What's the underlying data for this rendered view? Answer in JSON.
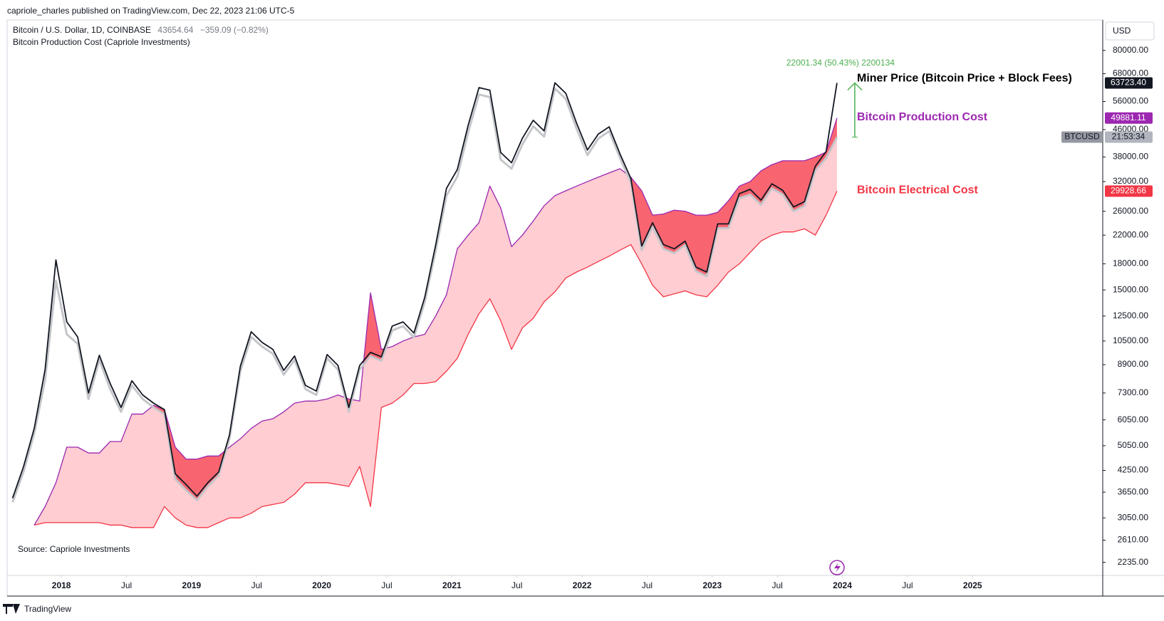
{
  "header": {
    "publisher": "capriole_charles published on TradingView.com, Dec 22, 2023 21:06 UTC-5",
    "symbol": "Bitcoin / U.S. Dollar, 1D, COINBASE",
    "price": "43654.64",
    "change": "−359.09 (−0.82%)",
    "indicator": "Bitcoin Production Cost (Capriole Investments)",
    "currency": "USD"
  },
  "footer": {
    "brand": "TradingView"
  },
  "chart_data": {
    "type": "line",
    "log_scale": true,
    "grid": false,
    "source": "Source: Capriole Investments",
    "measure": "22001.34 (50.43%) 2200134",
    "x": [
      "2017-08",
      "2017-09",
      "2017-10",
      "2017-11",
      "2017-12",
      "2018-01",
      "2018-02",
      "2018-03",
      "2018-04",
      "2018-05",
      "2018-06",
      "2018-07",
      "2018-08",
      "2018-09",
      "2018-10",
      "2018-11",
      "2018-12",
      "2019-01",
      "2019-02",
      "2019-03",
      "2019-04",
      "2019-05",
      "2019-06",
      "2019-07",
      "2019-08",
      "2019-09",
      "2019-10",
      "2019-11",
      "2019-12",
      "2020-01",
      "2020-02",
      "2020-03",
      "2020-04",
      "2020-05",
      "2020-06",
      "2020-07",
      "2020-08",
      "2020-09",
      "2020-10",
      "2020-11",
      "2020-12",
      "2021-01",
      "2021-02",
      "2021-03",
      "2021-04",
      "2021-05",
      "2021-06",
      "2021-07",
      "2021-08",
      "2021-09",
      "2021-10",
      "2021-11",
      "2021-12",
      "2022-01",
      "2022-02",
      "2022-03",
      "2022-04",
      "2022-05",
      "2022-06",
      "2022-07",
      "2022-08",
      "2022-09",
      "2022-10",
      "2022-11",
      "2022-12",
      "2023-01",
      "2023-02",
      "2023-03",
      "2023-04",
      "2023-05",
      "2023-06",
      "2023-07",
      "2023-08",
      "2023-09",
      "2023-10",
      "2023-11",
      "2023-12"
    ],
    "series": [
      {
        "name": "BTCUSD",
        "tag": "21:53:34",
        "color": "#c5c6ca",
        "values": [
          3400,
          4200,
          5500,
          8000,
          16000,
          11000,
          10300,
          7000,
          9200,
          7500,
          6400,
          7700,
          7000,
          6600,
          6300,
          4000,
          3700,
          3450,
          3800,
          4100,
          5300,
          8500,
          10800,
          10100,
          9600,
          8300,
          9200,
          7500,
          7200,
          9300,
          8600,
          6400,
          8600,
          9450,
          9140,
          11300,
          11650,
          10780,
          13800,
          19700,
          29000,
          33100,
          45100,
          58800,
          57700,
          37300,
          35000,
          41500,
          47100,
          43800,
          61300,
          57000,
          46300,
          38500,
          43200,
          45500,
          37700,
          31800,
          19800,
          23300,
          20000,
          19400,
          20500,
          17100,
          16500,
          23100,
          23100,
          28500,
          29200,
          27200,
          30500,
          29200,
          26000,
          27000,
          34500,
          37700,
          43654.64
        ]
      },
      {
        "name": "Miner Price (Bitcoin Price + Block Fees)",
        "last_label": "63723.40",
        "color": "#131722",
        "values": [
          3500,
          4350,
          5700,
          8600,
          18500,
          12000,
          10800,
          7300,
          9500,
          7800,
          6600,
          7950,
          7200,
          6800,
          6500,
          4150,
          3850,
          3550,
          3900,
          4200,
          5450,
          8800,
          11200,
          10400,
          9900,
          8550,
          9450,
          7700,
          7400,
          9550,
          8850,
          6600,
          8850,
          9700,
          9400,
          11650,
          12000,
          11100,
          14250,
          20500,
          30500,
          34800,
          47400,
          61700,
          60600,
          39200,
          36500,
          43300,
          49100,
          45600,
          63800,
          59300,
          48100,
          39900,
          44600,
          46900,
          38800,
          32700,
          20400,
          24000,
          20600,
          20000,
          21100,
          17600,
          17000,
          23800,
          23800,
          29400,
          30300,
          28100,
          31500,
          30100,
          26800,
          27800,
          35600,
          39500,
          63723.4
        ]
      },
      {
        "name": "Bitcoin Production Cost",
        "last_label": "49881.11",
        "color": "#9c27b0",
        "values": [
          null,
          null,
          2900,
          3300,
          3900,
          5000,
          5000,
          4800,
          4800,
          5200,
          5200,
          6300,
          6300,
          6700,
          6500,
          5000,
          4600,
          4600,
          4700,
          4700,
          5000,
          5300,
          5700,
          6000,
          6100,
          6400,
          6800,
          6900,
          6900,
          7000,
          7200,
          7000,
          6900,
          14700,
          9900,
          10100,
          10500,
          10800,
          11000,
          12500,
          14500,
          20000,
          22000,
          24000,
          31000,
          26600,
          20300,
          22000,
          24300,
          27000,
          29000,
          30000,
          31000,
          32000,
          33000,
          34000,
          35000,
          33000,
          30000,
          25300,
          25500,
          26200,
          26000,
          25300,
          25300,
          25800,
          28000,
          31000,
          32000,
          34500,
          36000,
          37000,
          37000,
          37000,
          38000,
          39300,
          49881.11
        ]
      },
      {
        "name": "Bitcoin Electrical Cost",
        "last_label": "29928.66",
        "color": "#f23645",
        "values": [
          null,
          null,
          2900,
          2950,
          2950,
          2950,
          2950,
          2950,
          2950,
          2900,
          2900,
          2850,
          2850,
          2850,
          3300,
          3050,
          2900,
          2850,
          2850,
          2950,
          3050,
          3050,
          3150,
          3300,
          3350,
          3400,
          3600,
          3900,
          3900,
          3900,
          3850,
          3800,
          4370,
          3300,
          6600,
          6800,
          7200,
          7800,
          7800,
          7900,
          8500,
          9300,
          11000,
          12700,
          14100,
          12100,
          9900,
          11500,
          12300,
          13800,
          14800,
          16300,
          17000,
          17600,
          18300,
          19000,
          19800,
          20600,
          18000,
          15500,
          14300,
          14600,
          14900,
          14500,
          14300,
          15500,
          17000,
          18000,
          19500,
          21100,
          22000,
          22500,
          22500,
          23000,
          22000,
          25300,
          29928.66
        ]
      }
    ],
    "xlim": [
      "2017-08",
      "2026-01"
    ],
    "xticks": [
      {
        "value": "2018-01",
        "label": "2018"
      },
      {
        "value": "2018-07",
        "label": "Jul"
      },
      {
        "value": "2019-01",
        "label": "2019"
      },
      {
        "value": "2019-07",
        "label": "Jul"
      },
      {
        "value": "2020-01",
        "label": "2020"
      },
      {
        "value": "2020-07",
        "label": "Jul"
      },
      {
        "value": "2021-01",
        "label": "2021"
      },
      {
        "value": "2021-07",
        "label": "Jul"
      },
      {
        "value": "2022-01",
        "label": "2022"
      },
      {
        "value": "2022-07",
        "label": "Jul"
      },
      {
        "value": "2023-01",
        "label": "2023"
      },
      {
        "value": "2023-07",
        "label": "Jul"
      },
      {
        "value": "2024-01",
        "label": "2024"
      },
      {
        "value": "2024-07",
        "label": "Jul"
      },
      {
        "value": "2025-01",
        "label": "2025"
      }
    ],
    "ylim": [
      2040,
      99000
    ],
    "yticks": [
      {
        "value": 80000,
        "label": "80000.00"
      },
      {
        "value": 68000,
        "label": "68000.00"
      },
      {
        "value": 56000,
        "label": "56000.00"
      },
      {
        "value": 46000,
        "label": "46000.00"
      },
      {
        "value": 38000,
        "label": "38000.00"
      },
      {
        "value": 32000,
        "label": "32000.00"
      },
      {
        "value": 26000,
        "label": "26000.00"
      },
      {
        "value": 22000,
        "label": "22000.00"
      },
      {
        "value": 18000,
        "label": "18000.00"
      },
      {
        "value": 15000,
        "label": "15000.00"
      },
      {
        "value": 12500,
        "label": "12500.00"
      },
      {
        "value": 10500,
        "label": "10500.00"
      },
      {
        "value": 8900,
        "label": "8900.00"
      },
      {
        "value": 7300,
        "label": "7300.00"
      },
      {
        "value": 6050,
        "label": "6050.00"
      },
      {
        "value": 5050,
        "label": "5050.00"
      },
      {
        "value": 4250,
        "label": "4250.00"
      },
      {
        "value": 3650,
        "label": "3650.00"
      },
      {
        "value": 3050,
        "label": "3050.00"
      },
      {
        "value": 2610,
        "label": "2610.00"
      },
      {
        "value": 2235,
        "label": "2235.00"
      }
    ]
  }
}
